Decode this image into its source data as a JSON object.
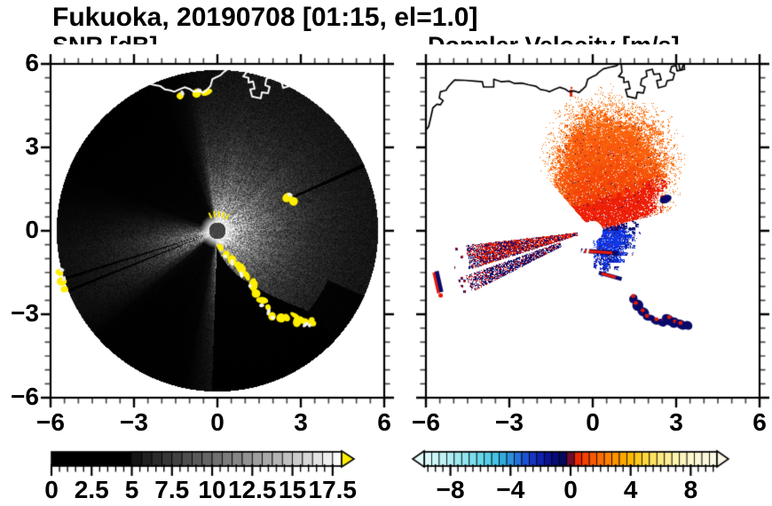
{
  "title": "Fukuoka, 20190708 [01:15, el=1.0]",
  "panels": {
    "snr": {
      "subtitle": "SNR [dB]"
    },
    "velocity": {
      "subtitle": "Doppler Velocity [m/s]"
    }
  },
  "axes": {
    "xlim": [
      -6,
      6
    ],
    "ylim": [
      -6,
      6
    ],
    "major_ticks": [
      -6,
      -3,
      0,
      3,
      6
    ],
    "minor_step": 0.5,
    "x_labels": [
      {
        "text": "−6",
        "value": -6
      },
      {
        "text": "−3",
        "value": -3
      },
      {
        "text": "0",
        "value": 0
      },
      {
        "text": "3",
        "value": 3
      },
      {
        "text": "6",
        "value": 6
      }
    ],
    "y_labels": [
      {
        "text": "6",
        "value": 6
      },
      {
        "text": "3",
        "value": 3
      },
      {
        "text": "0",
        "value": 0
      },
      {
        "text": "−3",
        "value": -3
      },
      {
        "text": "−6",
        "value": -6
      }
    ]
  },
  "colorbars": {
    "snr": {
      "range": [
        0,
        18.06
      ],
      "major_step": 2.5,
      "minor_step": 0.5,
      "segment_step": 0.625,
      "solid_black_until": 5,
      "gray_start": "#141414",
      "gray_end": "#fafafa",
      "over_arrow_color": "#ffee00",
      "labels": [
        {
          "text": "0",
          "value": 0
        },
        {
          "text": "2.5",
          "value": 2.5
        },
        {
          "text": "5",
          "value": 5
        },
        {
          "text": "7.5",
          "value": 7.5
        },
        {
          "text": "10",
          "value": 10
        },
        {
          "text": "12.5",
          "value": 12.5
        },
        {
          "text": "15",
          "value": 15
        },
        {
          "text": "17.5",
          "value": 17.5
        }
      ]
    },
    "velocity": {
      "range": [
        -9.75,
        9.75
      ],
      "major_step": 4,
      "minor_step": 0.5,
      "segment_step": 0.5,
      "under_arrow_color": "#e8fcfc",
      "over_arrow_color": "#faf8e6",
      "stops": [
        [
          -9.75,
          "#e2fbfb"
        ],
        [
          -9,
          "#cdf5f7"
        ],
        [
          -8,
          "#b0eef3"
        ],
        [
          -7,
          "#8fe5ef"
        ],
        [
          -6,
          "#68d6ea"
        ],
        [
          -5,
          "#45c3e5"
        ],
        [
          -4.5,
          "#31abdd"
        ],
        [
          -4,
          "#2c90de"
        ],
        [
          -3.5,
          "#2571dc"
        ],
        [
          -3,
          "#1d51d5"
        ],
        [
          -2.5,
          "#1536c5"
        ],
        [
          -2,
          "#0f21ad"
        ],
        [
          -1.5,
          "#0a1393"
        ],
        [
          -1,
          "#070c79"
        ],
        [
          -0.5,
          "#05095f"
        ],
        [
          -0.001,
          "#04064a"
        ],
        [
          0.001,
          "#dc1111"
        ],
        [
          0.5,
          "#ea2901"
        ],
        [
          1,
          "#f44101"
        ],
        [
          1.5,
          "#f95901"
        ],
        [
          2,
          "#fc6d01"
        ],
        [
          2.5,
          "#fd8101"
        ],
        [
          3,
          "#fe9301"
        ],
        [
          3.5,
          "#fea701"
        ],
        [
          4,
          "#feb901"
        ],
        [
          4.5,
          "#fec91f"
        ],
        [
          5,
          "#fed73f"
        ],
        [
          5.5,
          "#fee15f"
        ],
        [
          6,
          "#fee97d"
        ],
        [
          6.5,
          "#feef97"
        ],
        [
          7,
          "#fdf3ad"
        ],
        [
          7.5,
          "#fdf5bf"
        ],
        [
          8,
          "#fcf7cd"
        ],
        [
          8.75,
          "#fbf8d9"
        ],
        [
          9.75,
          "#faf9e5"
        ]
      ],
      "labels": [
        {
          "text": "−8",
          "value": -8
        },
        {
          "text": "−4",
          "value": -4
        },
        {
          "text": "0",
          "value": 0
        },
        {
          "text": "4",
          "value": 4
        },
        {
          "text": "8",
          "value": 8
        }
      ]
    }
  },
  "chart_data": {
    "type": "heatmap",
    "subtype": "dual_radar_ppi",
    "site": "Fukuoka",
    "date": "20190708",
    "time": "01:15",
    "elevation_deg": 1.0,
    "axis_range": {
      "xlim": [
        -6,
        6
      ],
      "ylim": [
        -6,
        6
      ]
    },
    "disk_radius": 5.78,
    "coastline_color_left": "#ffffff",
    "coastline_color_right": "#000000",
    "coastline_main": [
      [
        -6.05,
        3.55
      ],
      [
        -5.9,
        3.75
      ],
      [
        -5.82,
        4.1
      ],
      [
        -5.75,
        4.42
      ],
      [
        -5.6,
        4.55
      ],
      [
        -5.48,
        4.53
      ],
      [
        -5.38,
        4.68
      ],
      [
        -5.52,
        4.78
      ],
      [
        -5.48,
        5.0
      ],
      [
        -5.28,
        5.05
      ],
      [
        -5.18,
        5.2
      ],
      [
        -4.97,
        5.42
      ],
      [
        -4.6,
        5.41
      ],
      [
        -4.25,
        5.38
      ],
      [
        -3.97,
        5.36
      ],
      [
        -3.93,
        5.17
      ],
      [
        -3.56,
        5.17
      ],
      [
        -3.56,
        5.45
      ],
      [
        -3.3,
        5.36
      ],
      [
        -3.0,
        5.38
      ],
      [
        -2.82,
        5.3
      ],
      [
        -2.55,
        5.31
      ],
      [
        -2.3,
        5.25
      ],
      [
        -2.05,
        5.2
      ],
      [
        -1.88,
        5.08
      ],
      [
        -1.7,
        5.05
      ],
      [
        -1.55,
        5.0
      ],
      [
        -1.38,
        5.08
      ],
      [
        -1.18,
        5.16
      ],
      [
        -1.0,
        5.1
      ],
      [
        -0.85,
        5.0
      ],
      [
        -0.68,
        5.03
      ],
      [
        -0.5,
        4.97
      ],
      [
        -0.38,
        5.07
      ],
      [
        -0.25,
        5.2
      ],
      [
        -0.18,
        5.45
      ],
      [
        -0.05,
        5.52
      ],
      [
        0.12,
        5.6
      ],
      [
        0.22,
        5.7
      ],
      [
        0.38,
        5.82
      ],
      [
        0.62,
        5.88
      ],
      [
        0.85,
        5.93
      ],
      [
        1.0,
        6.05
      ]
    ],
    "coastline_harbor": [
      [
        1.02,
        6.05
      ],
      [
        1.05,
        5.7
      ],
      [
        0.93,
        5.55
      ],
      [
        1.12,
        5.5
      ],
      [
        1.12,
        5.33
      ],
      [
        1.28,
        5.37
      ],
      [
        1.34,
        5.11
      ],
      [
        1.18,
        5.08
      ],
      [
        1.25,
        4.83
      ],
      [
        1.56,
        4.76
      ],
      [
        1.6,
        4.98
      ],
      [
        1.82,
        4.95
      ],
      [
        1.88,
        5.17
      ],
      [
        1.72,
        5.24
      ],
      [
        1.76,
        5.46
      ],
      [
        1.95,
        5.55
      ],
      [
        1.92,
        5.75
      ],
      [
        2.14,
        5.81
      ],
      [
        2.2,
        5.62
      ],
      [
        2.4,
        5.65
      ],
      [
        2.46,
        5.43
      ],
      [
        2.3,
        5.4
      ],
      [
        2.36,
        5.14
      ],
      [
        2.62,
        5.21
      ],
      [
        2.68,
        5.4
      ],
      [
        2.88,
        5.43
      ],
      [
        2.94,
        5.65
      ],
      [
        2.78,
        5.72
      ],
      [
        2.84,
        5.91
      ],
      [
        3.0,
        5.94
      ],
      [
        3.03,
        5.75
      ],
      [
        3.19,
        5.78
      ],
      [
        3.26,
        5.97
      ]
    ],
    "coastline_harbor2": [
      [
        3.1,
        5.97
      ],
      [
        3.14,
        5.78
      ],
      [
        3.3,
        5.8
      ],
      [
        3.28,
        6.03
      ]
    ],
    "coast_landline": [
      [
        -6.1,
        3.5
      ],
      [
        -5.8,
        4.4
      ],
      [
        -5.4,
        4.75
      ],
      [
        -5.0,
        5.4
      ],
      [
        -4.0,
        5.35
      ],
      [
        -3.5,
        5.25
      ],
      [
        -2.9,
        5.32
      ],
      [
        -2.0,
        5.2
      ],
      [
        -1.5,
        5.02
      ],
      [
        -1.0,
        5.1
      ],
      [
        -0.6,
        5.0
      ],
      [
        -0.3,
        5.1
      ],
      [
        -0.1,
        5.5
      ],
      [
        0.4,
        5.82
      ],
      [
        1.05,
        6.0
      ]
    ],
    "clutter_chain": [
      [
        0.1,
        -0.62
      ],
      [
        0.28,
        -0.8
      ],
      [
        0.5,
        -1.02
      ],
      [
        0.72,
        -1.22
      ],
      [
        0.92,
        -1.45
      ],
      [
        1.06,
        -1.63
      ],
      [
        1.2,
        -1.86
      ],
      [
        1.34,
        -2.1
      ],
      [
        1.46,
        -2.32
      ],
      [
        1.62,
        -2.56
      ],
      [
        1.82,
        -2.8
      ],
      [
        2.02,
        -3.0
      ],
      [
        2.24,
        -3.12
      ],
      [
        2.5,
        -3.18
      ],
      [
        2.72,
        -3.08
      ],
      [
        2.92,
        -3.18
      ],
      [
        3.18,
        -3.25
      ],
      [
        3.42,
        -3.28
      ]
    ],
    "snr_panel": {
      "units": "dB",
      "value_range_shown": [
        0,
        18.06
      ],
      "over_range_color": "#ffee00",
      "center_dot": {
        "x": 0,
        "y": 0,
        "radius": 0.3,
        "gray": 58
      },
      "sector_gain": [
        [
          -92,
          0.85
        ],
        [
          -75,
          0.9
        ],
        [
          -55,
          0.95
        ],
        [
          -30,
          1
        ],
        [
          0,
          1
        ],
        [
          30,
          1
        ],
        [
          60,
          1
        ],
        [
          85,
          1
        ],
        [
          97,
          0.9
        ],
        [
          104,
          0.25
        ],
        [
          112,
          0.05
        ],
        [
          120,
          0.03
        ],
        [
          140,
          0.03
        ],
        [
          158,
          0.04
        ],
        [
          166,
          0.15
        ],
        [
          172,
          0.3
        ],
        [
          180,
          0.55
        ],
        [
          186,
          0.75
        ],
        [
          196,
          0.78
        ],
        [
          206,
          0.75
        ],
        [
          212,
          0.6
        ],
        [
          217,
          0.35
        ],
        [
          221,
          0.1
        ],
        [
          228,
          0.04
        ],
        [
          248,
          0.04
        ],
        [
          258,
          0.08
        ],
        [
          264,
          0.5
        ],
        [
          268,
          0.8
        ]
      ],
      "clutter_shadow_radius": [
        [
          -92,
          0.55
        ],
        [
          -84,
          0.8
        ],
        [
          -76,
          1.15
        ],
        [
          -68,
          1.6
        ],
        [
          -60,
          2.1
        ],
        [
          -53,
          2.7
        ],
        [
          -47,
          3.4
        ],
        [
          -42,
          4.2
        ]
      ],
      "dark_rays": [
        {
          "angle": 197.4,
          "half_width": 0.5,
          "r_min": 0.55
        },
        {
          "angle": 201.9,
          "half_width": 0.55,
          "r_min": 0.55
        },
        {
          "angle": 24.0,
          "half_width": 0.75,
          "r_min": 3.0
        }
      ],
      "yellow_extras": [
        [
          -5.68,
          -1.5
        ],
        [
          -5.6,
          -1.82
        ],
        [
          -5.5,
          -2.1
        ],
        [
          2.52,
          1.2
        ],
        [
          2.74,
          1.06
        ],
        [
          -0.74,
          4.95
        ],
        [
          -1.34,
          4.85
        ],
        [
          -0.38,
          4.98
        ]
      ],
      "center_fan_dashes": [
        55,
        70,
        85,
        100,
        115
      ]
    },
    "velocity_panel": {
      "units": "m/s",
      "colors": {
        "red": "#e41a08",
        "orange": "#fa7110",
        "navy": "#09096a",
        "blue": "#0a2fe2",
        "light_blue": "#287ae8"
      },
      "center_hole": {
        "x": 0,
        "y": -0.02,
        "radius": 0.31
      },
      "fan_outer_radius": [
        [
          14,
          2.3
        ],
        [
          25,
          2.7
        ],
        [
          35,
          3.3
        ],
        [
          45,
          3.8
        ],
        [
          55,
          4.1
        ],
        [
          65,
          4.35
        ],
        [
          75,
          4.4
        ],
        [
          85,
          4.35
        ],
        [
          95,
          4.25
        ],
        [
          102,
          3.9
        ],
        [
          110,
          3.4
        ],
        [
          118,
          2.9
        ],
        [
          125,
          2.5
        ],
        [
          131,
          2.1
        ]
      ],
      "fan_red_radius": [
        [
          14,
          3.1
        ],
        [
          25,
          3.2
        ],
        [
          35,
          2.9
        ],
        [
          45,
          2.0
        ],
        [
          55,
          1.5
        ],
        [
          70,
          1.2
        ],
        [
          90,
          1.0
        ],
        [
          110,
          1.0
        ],
        [
          131,
          1.2
        ]
      ],
      "blue_outer_radius": [
        [
          13.5,
          1.5
        ],
        [
          5,
          2.2
        ],
        [
          0,
          2.7
        ],
        [
          -8,
          3.2
        ],
        [
          -20,
          3.3
        ],
        [
          -32,
          3.4
        ],
        [
          -45,
          3.55
        ],
        [
          -55,
          3.5
        ],
        [
          -63,
          3.2
        ],
        [
          -72,
          2.8
        ],
        [
          -80,
          2.1
        ],
        [
          -86,
          1.3
        ]
      ],
      "wedge_red": {
        "theta": [
          186.5,
          197.5
        ],
        "r": [
          0.55,
          4.6
        ]
      },
      "wedge_navy": {
        "theta": [
          199.5,
          207.0
        ],
        "r": [
          1.25,
          4.85
        ]
      },
      "shear_band_theta": [
        1,
        13.5
      ],
      "navy_bands": [
        {
          "cx": 0.25,
          "cy": -0.76,
          "len": 1.35,
          "angle_deg": -4,
          "width": 0.16
        },
        {
          "cx": 0.63,
          "cy": -1.62,
          "len": 0.85,
          "angle_deg": -16,
          "width": 0.14
        }
      ],
      "side_blob": {
        "from": [
          -5.62,
          -1.45
        ],
        "to": [
          -5.45,
          -2.2
        ]
      },
      "coast_dash": {
        "x": -0.78,
        "y": 4.95
      },
      "clutter_patch": {
        "x": 2.62,
        "y": 1.14
      }
    }
  }
}
